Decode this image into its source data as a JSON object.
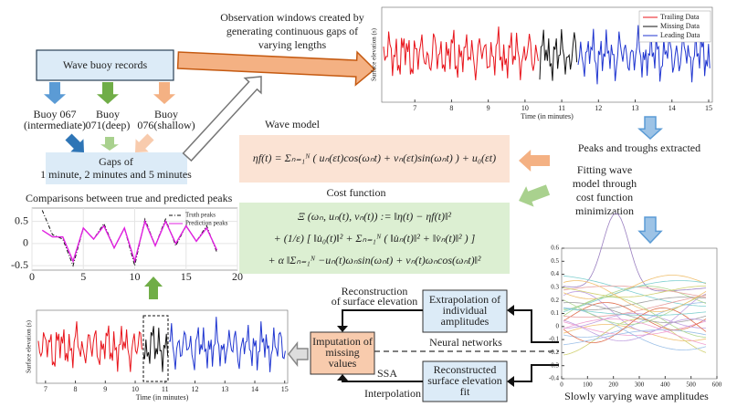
{
  "observation": [
    "Observation windows created by",
    "generating continuous gaps of",
    "varying lengths"
  ],
  "source": "Wave buoy records",
  "buoys": [
    [
      "Buoy 067",
      "(intermediate)"
    ],
    [
      "Buoy",
      "071(deep)"
    ],
    [
      "Buoy",
      "076(shallow)"
    ]
  ],
  "gaps": [
    "Gaps of",
    "1 minute, 2 minutes and 5 minutes"
  ],
  "wave_model": {
    "title": "Wave model",
    "formula": "ηf(t) = Σₙ₌₁ᴺ ( uₙ(εt)cos(ωₙt) + vₙ(εt)sin(ωₙt) ) + u₀(εt)"
  },
  "cost_function": {
    "title": "Cost function",
    "lines": [
      "Ξ (ωₙ, uₙ(t), vₙ(t)) := ‖η(t) − ηf(t)‖²",
      "+ (1/ε) [ ‖u̇₀(t)‖² + Σₙ₌₁ᴺ ( ‖u̇ₙ(t)‖² + ‖v̇ₙ(t)‖² ) ]",
      "+ α ‖Σₙ₌₁ᴺ −uₙ(t)ωₙsin(ωₙt) + vₙ(t)ωₙcos(ωₙt)‖²"
    ]
  },
  "steps": {
    "peaks": "Peaks and troughs extracted",
    "fitting": [
      "Fitting wave",
      "model through",
      "cost function",
      "minimization"
    ],
    "reconstruction": [
      "Reconstruction",
      "of surface elevation"
    ],
    "extrapolation": [
      "Extrapolation of",
      "individual",
      "amplitudes"
    ],
    "neural": "Neural networks",
    "imputation": [
      "Imputation of",
      "missing",
      "values"
    ],
    "ssa": "SSA",
    "interpolation": "Interpolation",
    "reconstructed": [
      "Reconstructed",
      "surface elevation",
      "fit"
    ],
    "amplitudes": "Slowly varying wave amplitudes"
  },
  "top_plot": {
    "y_label": "Surface elevation (s)",
    "x_label": "Time (in minutes)",
    "xlim": [
      6.1,
      15.1
    ],
    "xticks": [
      7,
      8,
      9,
      10,
      11,
      12,
      13,
      14,
      15
    ],
    "legend": [
      {
        "name": "Trailing Data",
        "color": "#e8141b"
      },
      {
        "name": "Missing Data",
        "color": "#111111"
      },
      {
        "name": "Leading Data",
        "color": "#1f35d0"
      }
    ]
  },
  "bottom_plot": {
    "y_label": "Surface elevation (s)",
    "x_label": "Time (in minutes)",
    "xlim": [
      6.7,
      15.1
    ],
    "xticks": [
      7,
      8,
      9,
      10,
      11,
      12,
      13,
      14,
      15
    ]
  },
  "chart_data": {
    "type": "line",
    "title": "Comparisons between true and predicted peaks",
    "x": [
      1,
      2,
      3,
      4,
      5,
      6,
      7,
      8,
      9,
      10,
      11,
      12,
      13,
      14,
      15,
      16,
      17,
      18
    ],
    "series": [
      {
        "name": "Truth peaks",
        "color": "#111111",
        "values": [
          0.75,
          0.2,
          0.1,
          -0.5,
          0.35,
          0.1,
          0.45,
          -0.1,
          0.35,
          -0.5,
          0.55,
          -0.05,
          0.55,
          -0.05,
          0.4,
          0.05,
          0.4,
          -0.2
        ]
      },
      {
        "name": "Prediction peaks",
        "color": "#e020e0",
        "values": [
          0.3,
          0.15,
          0.15,
          -0.4,
          0.35,
          0.1,
          0.4,
          -0.1,
          0.35,
          -0.4,
          0.5,
          -0.05,
          0.5,
          0,
          0.4,
          0.05,
          0.35,
          -0.15
        ]
      }
    ],
    "xlim": [
      0,
      20
    ],
    "xticks": [
      0,
      5,
      10,
      15,
      20
    ],
    "ylim": [
      -0.6,
      0.8
    ],
    "yticks": [
      -0.5,
      0,
      0.5
    ],
    "grid": true
  },
  "amplitude_plot": {
    "xlim": [
      0,
      600
    ],
    "xticks": [
      0,
      100,
      200,
      300,
      400,
      500,
      600
    ],
    "ylim": [
      -0.4,
      0.6
    ],
    "yticks": [
      -0.4,
      -0.3,
      -0.2,
      -0.1,
      0,
      0.1,
      0.2,
      0.3,
      0.4,
      0.5,
      0.6
    ]
  }
}
